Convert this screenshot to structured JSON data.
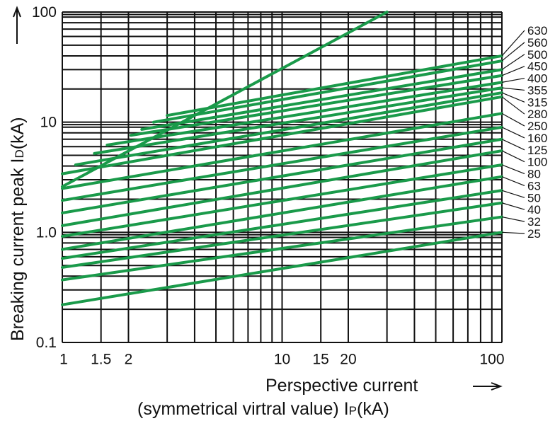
{
  "chart_data": {
    "type": "line",
    "x_scale": "log",
    "y_scale": "log",
    "xlim": [
      1,
      100
    ],
    "ylim": [
      0.1,
      100
    ],
    "grid": true,
    "x_ticks": [
      "1",
      "1.5",
      "2",
      "10",
      "15",
      "20",
      "100"
    ],
    "y_ticks": [
      "0.1",
      "1.0",
      "10",
      "100"
    ],
    "xlabel_line1": "Perspective current",
    "xlabel_line2_prefix": "(symmetrical virtral value) I",
    "xlabel_line2_sub": "P",
    "xlabel_line2_suffix": "(kA)",
    "ylabel_prefix": "Breaking current peak I",
    "ylabel_sub": "D",
    "ylabel_suffix": "(kA)",
    "line_color": "#1a9a4a",
    "limit_line": {
      "x": [
        1,
        30
      ],
      "y": [
        2.6,
        100
      ]
    },
    "series": [
      {
        "name": "630",
        "x": [
          3,
          100
        ],
        "y": [
          11.5,
          40
        ]
      },
      {
        "name": "560",
        "x": [
          2.6,
          100
        ],
        "y": [
          10,
          36
        ]
      },
      {
        "name": "500",
        "x": [
          2.3,
          100
        ],
        "y": [
          8.6,
          30
        ]
      },
      {
        "name": "450",
        "x": [
          2.05,
          100
        ],
        "y": [
          7.6,
          26.5
        ]
      },
      {
        "name": "400",
        "x": [
          1.6,
          100
        ],
        "y": [
          6.2,
          23
        ]
      },
      {
        "name": "355",
        "x": [
          1.4,
          100
        ],
        "y": [
          5.2,
          20.5
        ]
      },
      {
        "name": "315",
        "x": [
          1.15,
          100
        ],
        "y": [
          4.1,
          18.5
        ]
      },
      {
        "name": "280",
        "x": [
          1,
          100
        ],
        "y": [
          3.4,
          17
        ]
      },
      {
        "name": "250",
        "x": [
          1,
          100
        ],
        "y": [
          2.5,
          12
        ]
      },
      {
        "name": "160",
        "x": [
          1,
          100
        ],
        "y": [
          1.95,
          9
        ]
      },
      {
        "name": "125",
        "x": [
          1,
          100
        ],
        "y": [
          1.5,
          7
        ]
      },
      {
        "name": "100",
        "x": [
          1,
          100
        ],
        "y": [
          1.15,
          5.5
        ]
      },
      {
        "name": "80",
        "x": [
          1,
          100
        ],
        "y": [
          0.92,
          4.1
        ]
      },
      {
        "name": "63",
        "x": [
          1,
          100
        ],
        "y": [
          0.7,
          3.2
        ]
      },
      {
        "name": "50",
        "x": [
          1,
          100
        ],
        "y": [
          0.58,
          2.4
        ]
      },
      {
        "name": "40",
        "x": [
          1,
          100
        ],
        "y": [
          0.48,
          1.85
        ]
      },
      {
        "name": "32",
        "x": [
          1,
          100
        ],
        "y": [
          0.37,
          1.38
        ]
      },
      {
        "name": "25",
        "x": [
          1,
          100
        ],
        "y": [
          0.22,
          1.0
        ]
      }
    ]
  }
}
